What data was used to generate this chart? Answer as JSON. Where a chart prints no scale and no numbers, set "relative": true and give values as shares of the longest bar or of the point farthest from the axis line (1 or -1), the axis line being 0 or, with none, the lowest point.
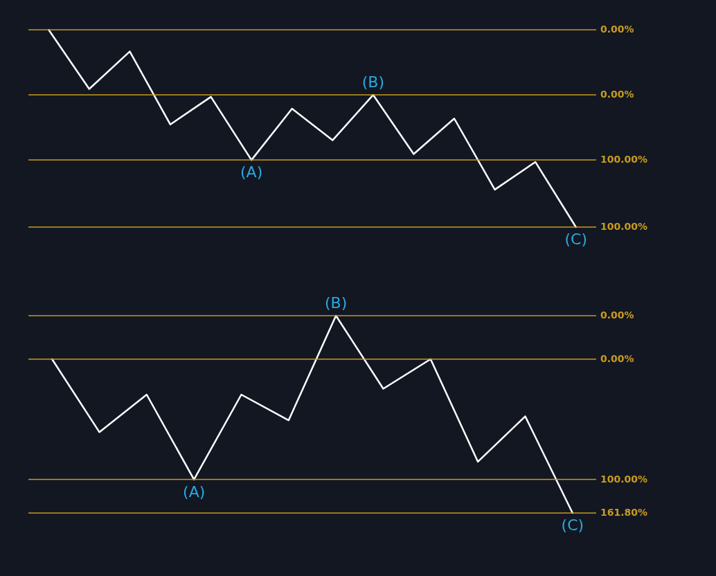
{
  "chart_data": [
    {
      "type": "line",
      "relative": true,
      "marker": "none",
      "line_style": "solid",
      "categories": [
        null,
        null,
        null,
        null,
        null,
        null,
        null,
        null,
        null,
        null,
        null,
        null,
        null,
        null
      ],
      "series": [
        {
          "color": "#ffffff",
          "values": [
            1,
            0.7,
            0.89,
            0.52,
            0.66,
            0.34,
            0.6,
            0.44,
            0.67,
            0.37,
            0.55,
            0.19,
            0.33,
            0
          ]
        }
      ],
      "ref_lines": [
        {
          "axis": "y",
          "value": 1,
          "color": "#c89b1e"
        },
        {
          "axis": "y",
          "value": 0.34,
          "color": "#c89b1e"
        },
        {
          "axis": "y",
          "value": 0.67,
          "color": "#c89b1e"
        },
        {
          "axis": "y",
          "value": 0,
          "color": "#c89b1e"
        }
      ],
      "annotations": [
        "0.00%",
        "100.00%",
        "0.00%",
        "100.00%",
        {
          "text": "(A)",
          "y": 0.34
        },
        {
          "text": "(B)",
          "y": 0.67
        },
        {
          "text": "(C)",
          "y": 0
        }
      ]
    },
    {
      "type": "line",
      "relative": true,
      "marker": "none",
      "line_style": "solid",
      "categories": [
        null,
        null,
        null,
        null,
        null,
        null,
        null,
        null,
        null,
        null,
        null,
        null
      ],
      "series": [
        {
          "color": "#ffffff",
          "values": [
            0.78,
            0.41,
            0.6,
            0.17,
            0.6,
            0.47,
            1,
            0.63,
            0.78,
            0.26,
            0.49,
            0
          ]
        }
      ],
      "ref_lines": [
        {
          "axis": "y",
          "value": 0.78,
          "color": "#c89b1e"
        },
        {
          "axis": "y",
          "value": 0.17,
          "color": "#c89b1e"
        },
        {
          "axis": "y",
          "value": 1,
          "color": "#c89b1e"
        },
        {
          "axis": "y",
          "value": 0,
          "color": "#c89b1e"
        }
      ],
      "annotations": [
        "0.00%",
        "100.00%",
        "0.00%",
        "161.80%",
        {
          "text": "(A)",
          "y": 0.17
        },
        {
          "text": "(B)",
          "y": 1
        },
        {
          "text": "(C)",
          "y": 0
        }
      ]
    }
  ]
}
